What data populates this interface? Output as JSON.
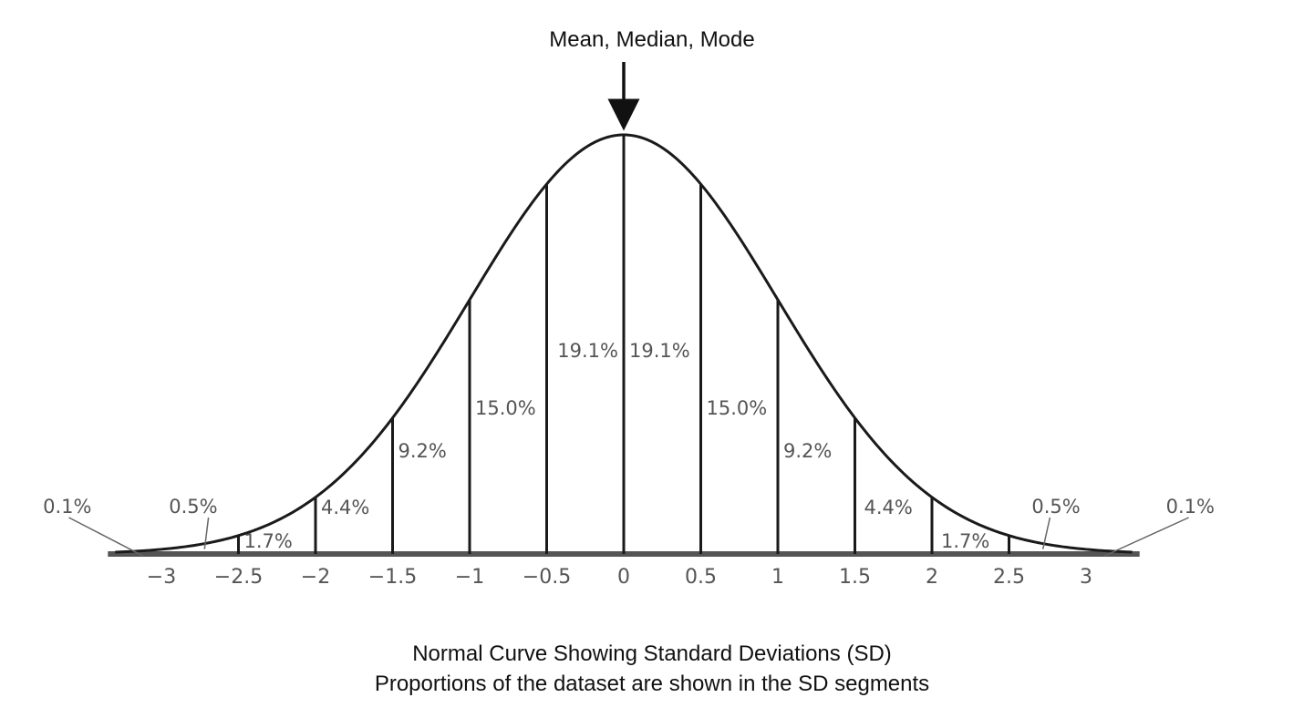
{
  "annotation": {
    "top": "Mean, Median, Mode"
  },
  "caption": {
    "line1": "Normal Curve Showing Standard Deviations (SD)",
    "line2": "Proportions of the dataset are shown in the SD segments"
  },
  "chart_data": {
    "type": "area",
    "title": "",
    "xlabel": "",
    "ylabel": "",
    "xlim": [
      -3.3,
      3.3
    ],
    "grid": false,
    "legend": "none",
    "curve": "normal distribution (mean 0, sd 1)",
    "ticks": [
      {
        "value": -3,
        "label": "−3"
      },
      {
        "value": -2.5,
        "label": "−2.5"
      },
      {
        "value": -2,
        "label": "−2"
      },
      {
        "value": -1.5,
        "label": "−1.5"
      },
      {
        "value": -1,
        "label": "−1"
      },
      {
        "value": -0.5,
        "label": "−0.5"
      },
      {
        "value": 0,
        "label": "0"
      },
      {
        "value": 0.5,
        "label": "0.5"
      },
      {
        "value": 1,
        "label": "1"
      },
      {
        "value": 1.5,
        "label": "1.5"
      },
      {
        "value": 2,
        "label": "2"
      },
      {
        "value": 2.5,
        "label": "2.5"
      },
      {
        "value": 3,
        "label": "3"
      }
    ],
    "segments": [
      {
        "from": -3.3,
        "to": -3,
        "label": "0.1%"
      },
      {
        "from": -3,
        "to": -2.5,
        "label": "0.5%"
      },
      {
        "from": -2.5,
        "to": -2,
        "label": "1.7%"
      },
      {
        "from": -2,
        "to": -1.5,
        "label": "4.4%"
      },
      {
        "from": -1.5,
        "to": -1,
        "label": "9.2%"
      },
      {
        "from": -1,
        "to": -0.5,
        "label": "15.0%"
      },
      {
        "from": -0.5,
        "to": 0,
        "label": "19.1%"
      },
      {
        "from": 0,
        "to": 0.5,
        "label": "19.1%"
      },
      {
        "from": 0.5,
        "to": 1,
        "label": "15.0%"
      },
      {
        "from": 1,
        "to": 1.5,
        "label": "9.2%"
      },
      {
        "from": 1.5,
        "to": 2,
        "label": "4.4%"
      },
      {
        "from": 2,
        "to": 2.5,
        "label": "1.7%"
      },
      {
        "from": 2.5,
        "to": 3,
        "label": "0.5%"
      },
      {
        "from": 3,
        "to": 3.3,
        "label": "0.1%"
      }
    ],
    "colors": {
      "curve": "#1a1a1a",
      "baseline": "#555555",
      "text": "#555555"
    }
  }
}
